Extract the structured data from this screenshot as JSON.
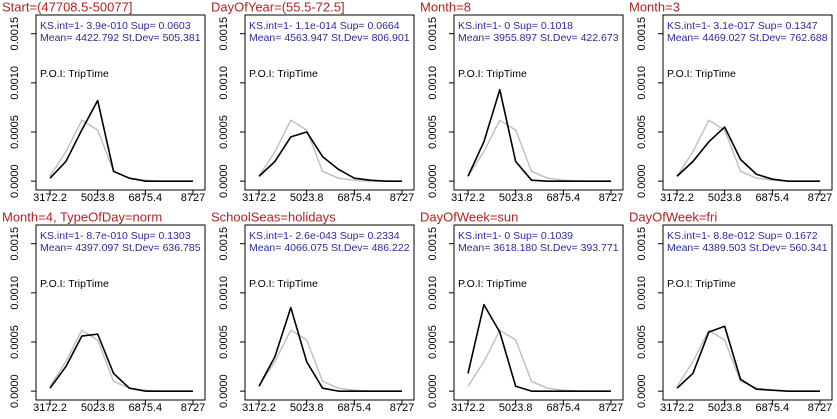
{
  "chart_data": [
    {
      "type": "line",
      "title": "Start=(47708.5-50077]",
      "annotations": [
        "KS.int=1- 3.9e-010 Sup= 0.0603",
        "Mean= 4422.792 St.Dev= 505.381",
        "P.O.I: TripTime"
      ],
      "x": [
        3172.2,
        3789.4,
        4406.6,
        5023.8,
        5641,
        6258.2,
        6875.4,
        7492.6,
        8109.8,
        8727
      ],
      "series": [
        {
          "color": "#bebebe",
          "values": [
            5e-05,
            0.0003,
            0.00062,
            0.00052,
            0.0001,
            3e-05,
            1e-05,
            0,
            0,
            0
          ]
        },
        {
          "color": "#000000",
          "values": [
            3e-05,
            0.0002,
            0.00052,
            0.00082,
            0.0001,
            3e-05,
            0,
            0,
            0,
            0
          ]
        }
      ],
      "xlim": [
        2628,
        9193
      ],
      "ylim": [
        -9e-05,
        0.00169
      ],
      "xticks": [
        3172.2,
        5023.8,
        6875.4,
        8727
      ],
      "yticks": [
        {
          "value": 0,
          "label": "0.0000"
        },
        0.0005,
        {
          "value": 0.001,
          "label": "0.0010"
        },
        0.0015
      ]
    },
    {
      "type": "line",
      "title": "DayOfYear=(55.5-72.5]",
      "annotations": [
        "KS.int=1- 1.1e-014 Sup= 0.0664",
        "Mean= 4563.947 St.Dev= 806.901",
        "P.O.I: TripTime"
      ],
      "x": [
        3172.2,
        3789.4,
        4406.6,
        5023.8,
        5641,
        6258.2,
        6875.4,
        7492.6,
        8109.8,
        8727
      ],
      "series": [
        {
          "color": "#bebebe",
          "values": [
            5e-05,
            0.0003,
            0.00062,
            0.00052,
            0.0001,
            3e-05,
            1e-05,
            0,
            0,
            0
          ]
        },
        {
          "color": "#000000",
          "values": [
            5e-05,
            0.0002,
            0.00045,
            0.0005,
            0.00025,
            0.00012,
            3e-05,
            1e-05,
            0,
            0
          ]
        }
      ],
      "xlim": [
        2628,
        9193
      ],
      "ylim": [
        -9e-05,
        0.00169
      ],
      "xticks": [
        3172.2,
        5023.8,
        6875.4,
        8727
      ],
      "yticks": [
        {
          "value": 0,
          "label": "0.0000"
        },
        0.0005,
        {
          "value": 0.001,
          "label": "0.0010"
        },
        0.0015
      ]
    },
    {
      "type": "line",
      "title": "Month=8",
      "annotations": [
        "KS.int=1- 0 Sup= 0.1018",
        "Mean= 3955.897 St.Dev= 422.673",
        "P.O.I: TripTime"
      ],
      "x": [
        3172.2,
        3789.4,
        4406.6,
        5023.8,
        5641,
        6258.2,
        6875.4,
        7492.6,
        8109.8,
        8727
      ],
      "series": [
        {
          "color": "#bebebe",
          "values": [
            5e-05,
            0.0003,
            0.00062,
            0.00052,
            0.0001,
            3e-05,
            1e-05,
            0,
            0,
            0
          ]
        },
        {
          "color": "#000000",
          "values": [
            5e-05,
            0.0004,
            0.00093,
            0.0002,
            1e-05,
            0,
            0,
            0,
            0,
            0
          ]
        }
      ],
      "xlim": [
        2628,
        9193
      ],
      "ylim": [
        -9e-05,
        0.00169
      ],
      "xticks": [
        3172.2,
        5023.8,
        6875.4,
        8727
      ],
      "yticks": [
        {
          "value": 0,
          "label": "0.0000"
        },
        0.0005,
        {
          "value": 0.001,
          "label": "0.0010"
        },
        0.0015
      ]
    },
    {
      "type": "line",
      "title": "Month=3",
      "annotations": [
        "KS.int=1- 3.1e-017 Sup= 0.1347",
        "Mean= 4469.027 St.Dev= 762.688",
        "P.O.I: TripTime"
      ],
      "x": [
        3172.2,
        3789.4,
        4406.6,
        5023.8,
        5641,
        6258.2,
        6875.4,
        7492.6,
        8109.8,
        8727
      ],
      "series": [
        {
          "color": "#bebebe",
          "values": [
            5e-05,
            0.0003,
            0.00062,
            0.00052,
            0.0001,
            3e-05,
            1e-05,
            0,
            0,
            0
          ]
        },
        {
          "color": "#000000",
          "values": [
            5e-05,
            0.0002,
            0.0004,
            0.00055,
            0.00022,
            7e-05,
            2e-05,
            0,
            0,
            0
          ]
        }
      ],
      "xlim": [
        2628,
        9193
      ],
      "ylim": [
        -9e-05,
        0.00169
      ],
      "xticks": [
        3172.2,
        5023.8,
        6875.4,
        8727
      ],
      "yticks": [
        {
          "value": 0,
          "label": "0.0000"
        },
        0.0005,
        {
          "value": 0.001,
          "label": "0.0010"
        },
        0.0015
      ]
    },
    {
      "type": "line",
      "title": "Month=4, TypeOfDay=norm",
      "annotations": [
        "KS.int=1- 8.7e-010 Sup= 0.1303",
        "Mean= 4397.097 St.Dev= 636.785",
        "P.O.I: TripTime"
      ],
      "x": [
        3172.2,
        3789.4,
        4406.6,
        5023.8,
        5641,
        6258.2,
        6875.4,
        7492.6,
        8109.8,
        8727
      ],
      "series": [
        {
          "color": "#bebebe",
          "values": [
            5e-05,
            0.0003,
            0.00062,
            0.00052,
            0.0001,
            3e-05,
            1e-05,
            0,
            0,
            0
          ]
        },
        {
          "color": "#000000",
          "values": [
            3e-05,
            0.00025,
            0.00056,
            0.00058,
            0.00018,
            3e-05,
            0,
            0,
            0,
            0
          ]
        }
      ],
      "xlim": [
        2628,
        9193
      ],
      "ylim": [
        -9e-05,
        0.00169
      ],
      "xticks": [
        3172.2,
        5023.8,
        6875.4,
        8727
      ],
      "yticks": [
        {
          "value": 0,
          "label": "0.0000"
        },
        0.0005,
        {
          "value": 0.001,
          "label": "0.0010"
        },
        0.0015
      ]
    },
    {
      "type": "line",
      "title": "SchoolSeas=holidays",
      "annotations": [
        "KS.int=1- 2.6e-043 Sup= 0.2334",
        "Mean= 4066.075 St.Dev= 486.222",
        "P.O.I: TripTime"
      ],
      "x": [
        3172.2,
        3789.4,
        4406.6,
        5023.8,
        5641,
        6258.2,
        6875.4,
        7492.6,
        8109.8,
        8727
      ],
      "series": [
        {
          "color": "#bebebe",
          "values": [
            5e-05,
            0.0003,
            0.00062,
            0.00052,
            0.0001,
            3e-05,
            1e-05,
            0,
            0,
            0
          ]
        },
        {
          "color": "#000000",
          "values": [
            5e-05,
            0.00035,
            0.00085,
            0.0003,
            3e-05,
            0,
            0,
            0,
            0,
            0
          ]
        }
      ],
      "xlim": [
        2628,
        9193
      ],
      "ylim": [
        -9e-05,
        0.00169
      ],
      "xticks": [
        3172.2,
        5023.8,
        6875.4,
        8727
      ],
      "yticks": [
        {
          "value": 0,
          "label": "0.0000"
        },
        0.0005,
        {
          "value": 0.001,
          "label": "0.0010"
        },
        0.0015
      ]
    },
    {
      "type": "line",
      "title": "DayOfWeek=sun",
      "annotations": [
        "KS.int=1- 0 Sup= 0.1039",
        "Mean= 3618.180 St.Dev= 393.771",
        "P.O.I: TripTime"
      ],
      "x": [
        3172.2,
        3789.4,
        4406.6,
        5023.8,
        5641,
        6258.2,
        6875.4,
        7492.6,
        8109.8,
        8727
      ],
      "series": [
        {
          "color": "#bebebe",
          "values": [
            5e-05,
            0.0003,
            0.00062,
            0.00052,
            0.0001,
            3e-05,
            1e-05,
            0,
            0,
            0
          ]
        },
        {
          "color": "#000000",
          "values": [
            0.00018,
            0.00088,
            0.0006,
            5e-05,
            0,
            0,
            0,
            0,
            0,
            0
          ]
        }
      ],
      "xlim": [
        2628,
        9193
      ],
      "ylim": [
        -9e-05,
        0.00169
      ],
      "xticks": [
        3172.2,
        5023.8,
        6875.4,
        8727
      ],
      "yticks": [
        {
          "value": 0,
          "label": "0.0000"
        },
        0.0005,
        {
          "value": 0.001,
          "label": "0.0010"
        },
        0.0015
      ]
    },
    {
      "type": "line",
      "title": "DayOfWeek=fri",
      "annotations": [
        "KS.int=1- 8.8e-012 Sup= 0.1672",
        "Mean= 4389.503 St.Dev= 560.341",
        "P.O.I: TripTime"
      ],
      "x": [
        3172.2,
        3789.4,
        4406.6,
        5023.8,
        5641,
        6258.2,
        6875.4,
        7492.6,
        8109.8,
        8727
      ],
      "series": [
        {
          "color": "#bebebe",
          "values": [
            5e-05,
            0.0003,
            0.00062,
            0.00052,
            0.0001,
            3e-05,
            1e-05,
            0,
            0,
            0
          ]
        },
        {
          "color": "#000000",
          "values": [
            3e-05,
            0.00018,
            0.0006,
            0.00066,
            0.00012,
            2e-05,
            1e-05,
            0,
            0,
            0
          ]
        }
      ],
      "xlim": [
        2628,
        9193
      ],
      "ylim": [
        -9e-05,
        0.00169
      ],
      "xticks": [
        3172.2,
        5023.8,
        6875.4,
        8727
      ],
      "yticks": [
        {
          "value": 0,
          "label": "0.0000"
        },
        0.0005,
        {
          "value": 0.001,
          "label": "0.0010"
        },
        0.0015
      ]
    }
  ]
}
